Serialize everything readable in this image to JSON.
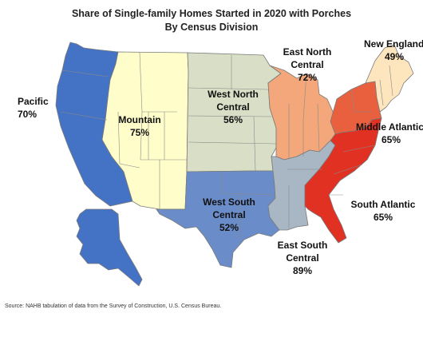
{
  "title": {
    "line1": "Share of Single-family Homes Started in 2020 with Porches",
    "line2": "By Census Division"
  },
  "divisions": {
    "pacific": {
      "name": "Pacific",
      "value": "70%",
      "color": "#4472c4"
    },
    "mountain": {
      "name": "Mountain",
      "value": "75%",
      "color": "#fffdc9"
    },
    "west_north_central": {
      "name_line1": "West North",
      "name_line2": "Central",
      "value": "56%",
      "color": "#d8dfc6"
    },
    "east_north_central": {
      "name_line1": "East North",
      "name_line2": "Central",
      "value": "72%",
      "color": "#f4a77a"
    },
    "new_england": {
      "name": "New England",
      "value": "49%",
      "color": "#fde5bd"
    },
    "middle_atlantic": {
      "name": "Middle Atlantic",
      "value": "65%",
      "color": "#e9603f"
    },
    "south_atlantic": {
      "name": "South Atlantic",
      "value": "65%",
      "color": "#e03123"
    },
    "east_south_central": {
      "name_line1": "East South",
      "name_line2": "Central",
      "value": "89%",
      "color": "#a9b6c4"
    },
    "west_south_central": {
      "name_line1": "West South",
      "name_line2": "Central",
      "value": "52%",
      "color": "#6a8cc8"
    }
  },
  "source": "Source: NAHB tabulation of data from the Survey of Construction, U.S. Census Bureau."
}
